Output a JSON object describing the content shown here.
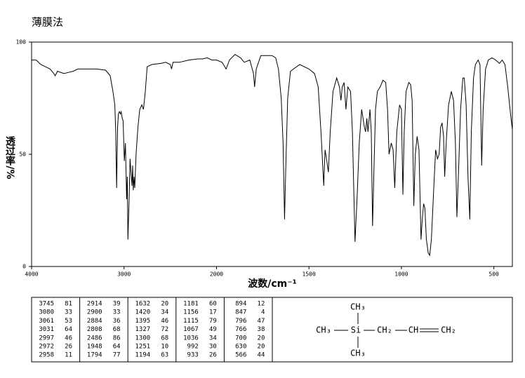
{
  "chart_data": {
    "type": "line",
    "title": "薄膜法",
    "x_label": "波数/cm⁻¹",
    "y_label": "透过率/%",
    "xlim": [
      4000,
      400
    ],
    "xticks": [
      4000,
      3000,
      2000,
      1500,
      1000,
      500
    ],
    "ylim": [
      0,
      100
    ],
    "yticks": [
      0,
      50,
      100
    ],
    "x": [
      4000,
      3950,
      3900,
      3850,
      3800,
      3760,
      3745,
      3720,
      3650,
      3600,
      3550,
      3500,
      3400,
      3300,
      3200,
      3150,
      3120,
      3100,
      3090,
      3080,
      3070,
      3061,
      3050,
      3040,
      3031,
      3020,
      3010,
      2997,
      2985,
      2972,
      2965,
      2958,
      2945,
      2935,
      2925,
      2914,
      2907,
      2900,
      2892,
      2884,
      2870,
      2850,
      2830,
      2808,
      2790,
      2770,
      2750,
      2700,
      2600,
      2550,
      2500,
      2486,
      2470,
      2400,
      2300,
      2200,
      2150,
      2100,
      2050,
      2000,
      1970,
      1948,
      1930,
      1900,
      1870,
      1850,
      1820,
      1800,
      1794,
      1785,
      1760,
      1700,
      1680,
      1665,
      1650,
      1640,
      1632,
      1625,
      1615,
      1600,
      1550,
      1500,
      1470,
      1450,
      1435,
      1420,
      1413,
      1405,
      1395,
      1385,
      1370,
      1350,
      1335,
      1327,
      1320,
      1310,
      1300,
      1290,
      1275,
      1265,
      1251,
      1240,
      1228,
      1215,
      1200,
      1194,
      1187,
      1181,
      1170,
      1163,
      1156,
      1148,
      1140,
      1130,
      1115,
      1100,
      1085,
      1075,
      1067,
      1055,
      1045,
      1036,
      1025,
      1010,
      1000,
      992,
      985,
      975,
      960,
      950,
      942,
      933,
      925,
      915,
      905,
      894,
      888,
      880,
      873,
      865,
      855,
      847,
      838,
      825,
      815,
      805,
      796,
      788,
      780,
      772,
      766,
      758,
      745,
      730,
      718,
      708,
      700,
      692,
      680,
      668,
      660,
      650,
      640,
      630,
      622,
      610,
      600,
      585,
      575,
      566,
      558,
      545,
      530,
      510,
      490,
      470,
      455,
      440,
      425,
      410,
      400
    ],
    "series": [
      {
        "color": "#000000",
        "values": [
          92,
          92,
          90,
          89,
          88,
          86,
          85,
          87,
          86,
          86.5,
          87,
          88,
          88,
          88,
          87.5,
          85,
          78,
          72,
          60,
          35,
          62,
          68,
          69,
          68,
          69,
          66,
          65,
          47,
          55,
          30,
          40,
          12,
          30,
          48,
          42,
          36,
          45,
          34,
          40,
          35,
          50,
          62,
          70,
          72,
          70,
          78,
          89,
          90,
          90.5,
          91,
          90,
          88,
          91,
          91,
          92,
          92.5,
          92.5,
          93,
          92,
          92,
          91,
          88,
          92,
          94.5,
          93,
          91,
          92,
          86,
          80,
          88,
          94,
          94,
          93,
          88,
          75,
          55,
          21,
          45,
          75,
          87,
          90,
          88,
          86,
          80,
          60,
          36,
          52,
          48,
          42,
          60,
          78,
          84,
          80,
          74,
          80,
          82,
          70,
          80,
          78,
          60,
          11,
          30,
          55,
          70,
          62,
          60,
          66,
          60,
          70,
          60,
          18,
          45,
          70,
          78,
          80,
          83,
          82,
          70,
          50,
          55,
          52,
          35,
          60,
          72,
          70,
          32,
          60,
          78,
          82,
          81,
          74,
          27,
          50,
          58,
          52,
          12,
          20,
          28,
          26,
          12,
          6,
          5,
          12,
          35,
          52,
          48,
          50,
          62,
          64,
          58,
          40,
          55,
          72,
          78,
          74,
          55,
          22,
          40,
          70,
          84,
          84,
          72,
          40,
          21,
          60,
          84,
          90,
          92,
          90,
          45,
          70,
          88,
          92,
          93,
          92,
          90.5,
          92,
          90,
          80,
          68,
          61
        ]
      }
    ]
  },
  "peak_table": {
    "columns": [
      [
        [
          3745,
          81
        ],
        [
          3080,
          33
        ],
        [
          3061,
          53
        ],
        [
          3031,
          64
        ],
        [
          2997,
          46
        ],
        [
          2972,
          26
        ],
        [
          2958,
          11
        ]
      ],
      [
        [
          2914,
          39
        ],
        [
          2900,
          33
        ],
        [
          2884,
          36
        ],
        [
          2808,
          68
        ],
        [
          2486,
          86
        ],
        [
          1948,
          64
        ],
        [
          1794,
          77
        ]
      ],
      [
        [
          1632,
          20
        ],
        [
          1420,
          34
        ],
        [
          1395,
          46
        ],
        [
          1327,
          72
        ],
        [
          1300,
          68
        ],
        [
          1251,
          10
        ],
        [
          1194,
          63
        ]
      ],
      [
        [
          1181,
          60
        ],
        [
          1156,
          17
        ],
        [
          1115,
          79
        ],
        [
          1067,
          49
        ],
        [
          1036,
          34
        ],
        [
          992,
          30
        ],
        [
          933,
          26
        ]
      ],
      [
        [
          894,
          12
        ],
        [
          847,
          4
        ],
        [
          796,
          47
        ],
        [
          766,
          38
        ],
        [
          700,
          20
        ],
        [
          630,
          20
        ],
        [
          566,
          44
        ]
      ]
    ]
  },
  "structure": {
    "top": "CH₃",
    "left": "CH₃",
    "center": "Si",
    "ch2": "CH₂",
    "ch": "CH",
    "end": "CH₂",
    "bottom": "CH₃"
  }
}
